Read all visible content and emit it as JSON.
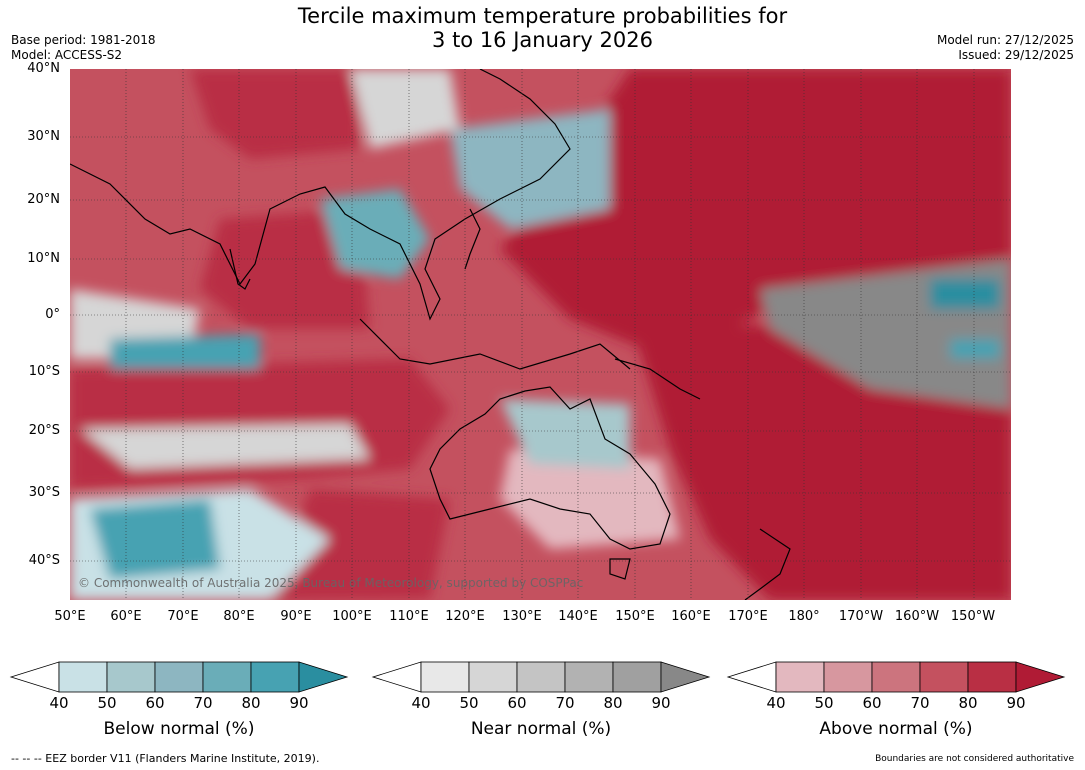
{
  "title_line1": "Tercile maximum temperature probabilities for",
  "title_line2": "3 to 16 January 2026",
  "base_period": "Base period: 1981-2018",
  "model": "Model: ACCESS-S2",
  "model_run": "Model run: 27/12/2025",
  "issued": "Issued: 29/12/2025",
  "copyright": "© Commonwealth of Australia 2025, Bureau of Meteorology, supported by COSPPac",
  "lat_ticks": [
    "40°N",
    "30°N",
    "20°N",
    "10°N",
    "0°",
    "10°S",
    "20°S",
    "30°S",
    "40°S"
  ],
  "lon_ticks": [
    "50°E",
    "60°E",
    "70°E",
    "80°E",
    "90°E",
    "100°E",
    "110°E",
    "120°E",
    "130°E",
    "140°E",
    "150°E",
    "160°E",
    "170°E",
    "180°",
    "170°W",
    "160°W",
    "150°W"
  ],
  "legends": {
    "below": {
      "label": "Below normal (%)",
      "ticks": [
        "40",
        "50",
        "60",
        "70",
        "80",
        "90"
      ],
      "colors": [
        "#c9e1e6",
        "#a7c8cc",
        "#8db6c1",
        "#6aadb8",
        "#47a2b2",
        "#2a8ea0"
      ]
    },
    "near": {
      "label": "Near normal (%)",
      "ticks": [
        "40",
        "50",
        "60",
        "70",
        "80",
        "90"
      ],
      "colors": [
        "#e8e8e8",
        "#d6d6d6",
        "#c4c4c4",
        "#b2b2b2",
        "#a0a0a0",
        "#888888"
      ]
    },
    "above": {
      "label": "Above normal (%)",
      "ticks": [
        "40",
        "50",
        "60",
        "70",
        "80",
        "90"
      ],
      "colors": [
        "#e3b8bf",
        "#d7979f",
        "#cc747e",
        "#c4515f",
        "#b92f44",
        "#b01b35"
      ]
    }
  },
  "footer_left": "--  --  -- EEZ border V11 (Flanders Marine Institute, 2019).",
  "footer_right": "Boundaries are not considered authoritative"
}
